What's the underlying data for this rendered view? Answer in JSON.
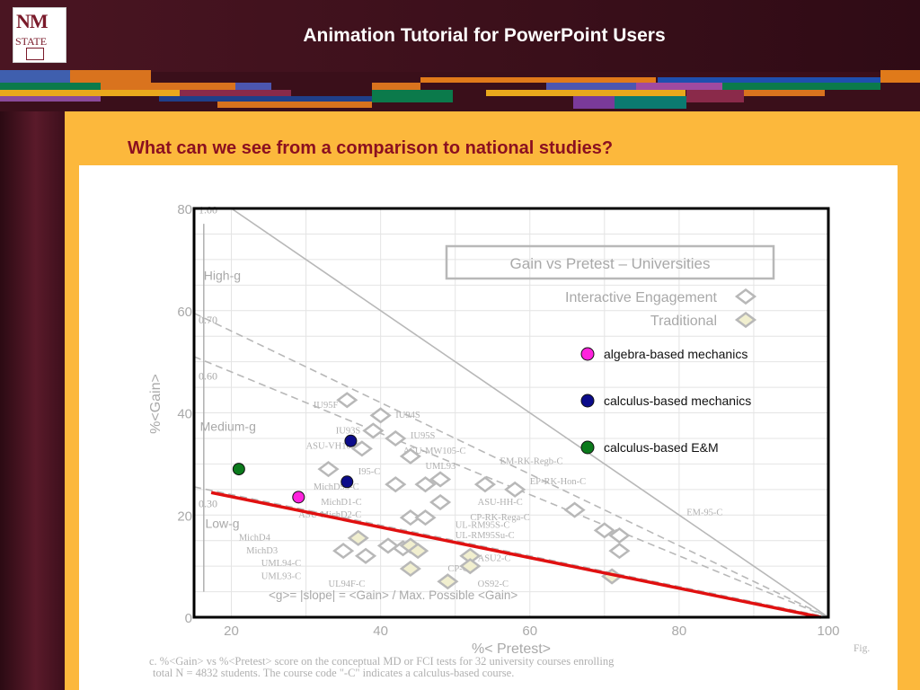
{
  "header": {
    "logo_text_top": "NM",
    "logo_text_bottom": "STATE",
    "title": "Animation Tutorial for PowerPoint Users"
  },
  "slide": {
    "subtitle": "What can we see from a comparison to national studies?"
  },
  "colors": {
    "header_bg": "#3a0f1a",
    "content_bg": "#fcb83c",
    "subtitle": "#8b1020",
    "fit_line": "#e01010",
    "algebra": "#ff22dd",
    "calculus_mech": "#0b0b8a",
    "calculus_em": "#0b7a1c"
  },
  "chart_data": {
    "type": "scatter",
    "title": "Gain vs Pretest – Universities",
    "xlabel": "%< Pretest>",
    "ylabel": "%<Gain>",
    "xlim": [
      15,
      100
    ],
    "ylim": [
      0,
      80
    ],
    "x_ticks": [
      20,
      40,
      60,
      80,
      100
    ],
    "y_ticks": [
      0,
      20,
      40,
      60,
      80
    ],
    "grid": true,
    "legend_placement": "top-right",
    "legend_entries": [
      "Interactive Engagement",
      "Traditional"
    ],
    "region_labels": [
      "High-g",
      "Medium-g",
      "Low-g"
    ],
    "slope_values": [
      "1.00",
      "0.70",
      "0.60",
      "0.30"
    ],
    "formula_label": "<g>= |slope| = <Gain> / Max. Possible <Gain>",
    "caption_prefix": "Fig.",
    "caption": "c.   %<Gain> vs %<Pretest> score on the conceptual MD or FCI tests for 32 university courses enrolling total N = 4832 students. The course code \"-C\" indicates a calculus-based course.",
    "course_labels": [
      {
        "text": "IU95F",
        "x": 31,
        "y": 41
      },
      {
        "text": "IU94S",
        "x": 42,
        "y": 39
      },
      {
        "text": "IU93S",
        "x": 34,
        "y": 36
      },
      {
        "text": "IU95S",
        "x": 44,
        "y": 35
      },
      {
        "text": "ASU-VH105C",
        "x": 30,
        "y": 33
      },
      {
        "text": "ASU-MW105-C",
        "x": 43,
        "y": 32
      },
      {
        "text": "UML93",
        "x": 46,
        "y": 29
      },
      {
        "text": "EM-RK-Regb-C",
        "x": 56,
        "y": 30
      },
      {
        "text": "I95-C",
        "x": 37,
        "y": 28
      },
      {
        "text": "EP-RK-Hon-C",
        "x": 60,
        "y": 26
      },
      {
        "text": "MichD95-C",
        "x": 31,
        "y": 25
      },
      {
        "text": "ASU-HH-C",
        "x": 53,
        "y": 22
      },
      {
        "text": "MichD1-C",
        "x": 32,
        "y": 22
      },
      {
        "text": "ASU-MichD2-C",
        "x": 29,
        "y": 19.5
      },
      {
        "text": "CP-RK-Rega-C",
        "x": 52,
        "y": 19
      },
      {
        "text": "EM-95-C",
        "x": 81,
        "y": 20
      },
      {
        "text": "UL-RM95S-C",
        "x": 50,
        "y": 17.5
      },
      {
        "text": "UL-RM95Su-C",
        "x": 50,
        "y": 15.5
      },
      {
        "text": "MichD4",
        "x": 21,
        "y": 15
      },
      {
        "text": "MichD3",
        "x": 22,
        "y": 12.5
      },
      {
        "text": "UML94-C",
        "x": 24,
        "y": 10
      },
      {
        "text": "CP-C",
        "x": 49,
        "y": 9
      },
      {
        "text": "ASU2-C",
        "x": 53,
        "y": 11
      },
      {
        "text": "UML93-C",
        "x": 24,
        "y": 7.5
      },
      {
        "text": "UL94F-C",
        "x": 33,
        "y": 6
      },
      {
        "text": "OS92-C",
        "x": 53,
        "y": 6
      }
    ],
    "series": [
      {
        "name": "Interactive Engagement",
        "marker": "diamond-open",
        "points": [
          {
            "x": 35.5,
            "y": 42.5
          },
          {
            "x": 40,
            "y": 39.5
          },
          {
            "x": 39,
            "y": 36.5
          },
          {
            "x": 42,
            "y": 35
          },
          {
            "x": 37.5,
            "y": 33
          },
          {
            "x": 44,
            "y": 31.5
          },
          {
            "x": 33,
            "y": 29
          },
          {
            "x": 42,
            "y": 26
          },
          {
            "x": 48,
            "y": 27
          },
          {
            "x": 46,
            "y": 26
          },
          {
            "x": 54,
            "y": 26
          },
          {
            "x": 58,
            "y": 25
          },
          {
            "x": 48,
            "y": 22.5
          },
          {
            "x": 44,
            "y": 19.5
          },
          {
            "x": 46,
            "y": 19.5
          },
          {
            "x": 66,
            "y": 21
          },
          {
            "x": 70,
            "y": 17
          },
          {
            "x": 72,
            "y": 16
          },
          {
            "x": 41,
            "y": 14
          },
          {
            "x": 43,
            "y": 13.5
          },
          {
            "x": 35,
            "y": 13
          },
          {
            "x": 38,
            "y": 12
          },
          {
            "x": 72,
            "y": 13
          }
        ]
      },
      {
        "name": "Traditional",
        "marker": "diamond-filled",
        "points": [
          {
            "x": 37,
            "y": 15.5
          },
          {
            "x": 44,
            "y": 14
          },
          {
            "x": 45,
            "y": 13
          },
          {
            "x": 52,
            "y": 12
          },
          {
            "x": 52,
            "y": 10
          },
          {
            "x": 44,
            "y": 9.5
          },
          {
            "x": 49,
            "y": 7
          },
          {
            "x": 71,
            "y": 8
          }
        ]
      },
      {
        "name": "algebra-based mechanics",
        "marker": "circle",
        "color": "#ff22dd",
        "points": [
          {
            "x": 29,
            "y": 23.5
          }
        ]
      },
      {
        "name": "calculus-based mechanics",
        "marker": "circle",
        "color": "#0b0b8a",
        "points": [
          {
            "x": 36,
            "y": 34.5
          },
          {
            "x": 35.5,
            "y": 26.5
          }
        ]
      },
      {
        "name": "calculus-based E&M",
        "marker": "circle",
        "color": "#0b7a1c",
        "points": [
          {
            "x": 21,
            "y": 29
          }
        ]
      }
    ],
    "fit_line": {
      "x": [
        17.3,
        99
      ],
      "y": [
        24.4,
        0
      ]
    },
    "slope_lines": [
      {
        "slope": 1.0,
        "style": "solid"
      },
      {
        "slope": 0.7,
        "style": "dashed"
      },
      {
        "slope": 0.6,
        "style": "dashed"
      },
      {
        "slope": 0.3,
        "style": "dashed"
      }
    ]
  }
}
